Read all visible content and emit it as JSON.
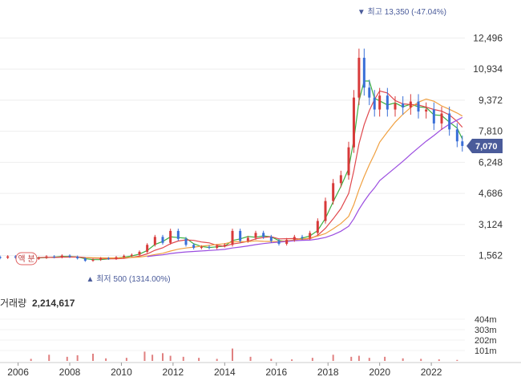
{
  "chart_data": {
    "type": "candlestick",
    "title": "",
    "x_ticks": [
      "2006",
      "2008",
      "2010",
      "2012",
      "2014",
      "2016",
      "2018",
      "2020",
      "2022"
    ],
    "x_range": [
      2005.3,
      2023.3
    ],
    "price_axis": {
      "ticks": [
        "12,496",
        "10,934",
        "9,372",
        "7,810",
        "6,248",
        "4,686",
        "3,124",
        "1,562"
      ],
      "range": [
        700,
        14000
      ]
    },
    "current_price": {
      "label": "7,070",
      "value": 7070,
      "color": "#4a5b9a"
    },
    "high_marker": {
      "text": "최고 13,350 (-47.04%)",
      "arrow": "▼",
      "value": 13350,
      "x": 2019.2
    },
    "low_marker": {
      "text": "최저 500 (1314.00%)",
      "arrow": "▲",
      "value": 500,
      "x": 2008.7
    },
    "moving_averages": [
      {
        "name": "ma-short",
        "color": "#3cb043",
        "values": []
      },
      {
        "name": "ma-mid",
        "color": "#e0474c"
      },
      {
        "name": "ma-long",
        "color": "#f0a040"
      },
      {
        "name": "ma-longest",
        "color": "#9b4de0"
      }
    ],
    "candles": [
      [
        2005.3,
        1500,
        1430
      ],
      [
        2005.6,
        1450,
        1520
      ],
      [
        2005.9,
        1520,
        1460
      ],
      [
        2006.2,
        1460,
        1490
      ],
      [
        2006.5,
        1490,
        1400
      ],
      [
        2006.8,
        1400,
        1450
      ],
      [
        2007.1,
        1450,
        1520
      ],
      [
        2007.4,
        1520,
        1480
      ],
      [
        2007.7,
        1480,
        1560
      ],
      [
        2008.0,
        1560,
        1500
      ],
      [
        2008.3,
        1500,
        1420
      ],
      [
        2008.6,
        1420,
        1300
      ],
      [
        2008.9,
        1300,
        1350
      ],
      [
        2009.2,
        1350,
        1430
      ],
      [
        2009.5,
        1430,
        1400
      ],
      [
        2009.8,
        1400,
        1480
      ],
      [
        2010.1,
        1480,
        1550
      ],
      [
        2010.4,
        1550,
        1600
      ],
      [
        2010.7,
        1600,
        1750
      ],
      [
        2011.0,
        1750,
        2100
      ],
      [
        2011.3,
        2100,
        2500
      ],
      [
        2011.6,
        2500,
        2200
      ],
      [
        2011.9,
        2200,
        2800
      ],
      [
        2012.2,
        2800,
        2400
      ],
      [
        2012.5,
        2400,
        2100
      ],
      [
        2012.8,
        2100,
        1950
      ],
      [
        2013.1,
        1950,
        2000
      ],
      [
        2013.4,
        2000,
        1950
      ],
      [
        2013.7,
        1950,
        2050
      ],
      [
        2014.0,
        2050,
        2100
      ],
      [
        2014.3,
        2100,
        2800
      ],
      [
        2014.6,
        2800,
        2300
      ],
      [
        2014.9,
        2300,
        2450
      ],
      [
        2015.2,
        2450,
        2700
      ],
      [
        2015.5,
        2700,
        2500
      ],
      [
        2015.8,
        2500,
        2300
      ],
      [
        2016.1,
        2300,
        2150
      ],
      [
        2016.4,
        2150,
        2350
      ],
      [
        2016.7,
        2350,
        2500
      ],
      [
        2017.0,
        2500,
        2450
      ],
      [
        2017.3,
        2450,
        2700
      ],
      [
        2017.6,
        2700,
        3300
      ],
      [
        2017.9,
        3300,
        4300
      ],
      [
        2018.2,
        4300,
        5200
      ],
      [
        2018.5,
        5200,
        5600
      ],
      [
        2018.8,
        5600,
        7000
      ],
      [
        2019.0,
        7000,
        9500
      ],
      [
        2019.2,
        9500,
        11500
      ],
      [
        2019.4,
        11500,
        10000
      ],
      [
        2019.6,
        10000,
        9500
      ],
      [
        2019.8,
        9500,
        8900
      ],
      [
        2020.0,
        8900,
        9600
      ],
      [
        2020.3,
        9600,
        8900
      ],
      [
        2020.6,
        8900,
        9200
      ],
      [
        2020.9,
        9200,
        9000
      ],
      [
        2021.2,
        9000,
        9300
      ],
      [
        2021.5,
        9300,
        8800
      ],
      [
        2021.8,
        8800,
        8900
      ],
      [
        2022.1,
        8900,
        8200
      ],
      [
        2022.4,
        8200,
        8700
      ],
      [
        2022.7,
        8700,
        7900
      ],
      [
        2023.0,
        7900,
        7300
      ],
      [
        2023.2,
        7300,
        7070
      ]
    ],
    "volume": {
      "label": "거래량",
      "value": "2,214,617",
      "axis_ticks": [
        "404m",
        "303m",
        "202m",
        "101m"
      ],
      "max": 505,
      "bars": [
        [
          2006.5,
          20
        ],
        [
          2007.2,
          60
        ],
        [
          2007.9,
          40
        ],
        [
          2008.3,
          55
        ],
        [
          2008.9,
          70
        ],
        [
          2009.4,
          25
        ],
        [
          2010.2,
          30
        ],
        [
          2010.9,
          90
        ],
        [
          2011.2,
          60
        ],
        [
          2011.6,
          75
        ],
        [
          2011.9,
          50
        ],
        [
          2012.4,
          40
        ],
        [
          2013.0,
          30
        ],
        [
          2013.7,
          20
        ],
        [
          2014.3,
          120
        ],
        [
          2015.0,
          40
        ],
        [
          2015.8,
          20
        ],
        [
          2016.6,
          15
        ],
        [
          2017.4,
          30
        ],
        [
          2018.2,
          60
        ],
        [
          2018.9,
          40
        ],
        [
          2019.2,
          50
        ],
        [
          2019.6,
          30
        ],
        [
          2020.2,
          40
        ],
        [
          2020.9,
          25
        ],
        [
          2021.6,
          20
        ],
        [
          2022.3,
          15
        ],
        [
          2023.0,
          10
        ]
      ]
    },
    "ytick_labels": [
      "12,496",
      "10,934",
      "9,372",
      "7,810",
      "6,248",
      "4,686",
      "3,124",
      "1,562"
    ],
    "legend_label": "액 분",
    "grid": true
  }
}
